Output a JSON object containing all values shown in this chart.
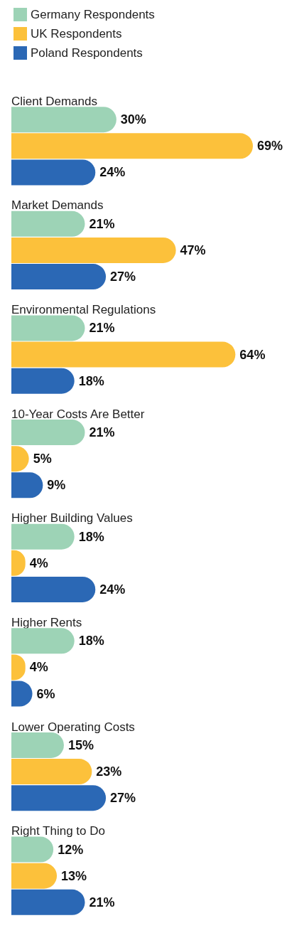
{
  "chart_data": {
    "type": "bar",
    "orientation": "horizontal",
    "legend": "top left",
    "categories": [
      "Client Demands",
      "Market Demands",
      "Environmental Regulations",
      "10-Year Costs Are Better",
      "Higher Building Values",
      "Higher Rents",
      "Lower Operating Costs",
      "Right Thing to Do"
    ],
    "series": [
      {
        "name": "Germany Respondents",
        "color": "#9dd3b6",
        "values": [
          30,
          21,
          21,
          21,
          18,
          18,
          15,
          12
        ],
        "value_labels": [
          "30%",
          "21%",
          "21%",
          "21%",
          "18%",
          "18%",
          "15%",
          "12%"
        ]
      },
      {
        "name": "UK Respondents",
        "color": "#fcc13b",
        "values": [
          69,
          47,
          64,
          5,
          4,
          4,
          23,
          13
        ],
        "value_labels": [
          "69%",
          "47%",
          "64%",
          "5%",
          "4%",
          "4%",
          "23%",
          "13%"
        ]
      },
      {
        "name": "Poland Respondents",
        "color": "#2b68b5",
        "values": [
          24,
          27,
          18,
          9,
          24,
          6,
          27,
          21
        ],
        "value_labels": [
          "24%",
          "27%",
          "18%",
          "9%",
          "24%",
          "6%",
          "27%",
          "21%"
        ]
      }
    ]
  }
}
